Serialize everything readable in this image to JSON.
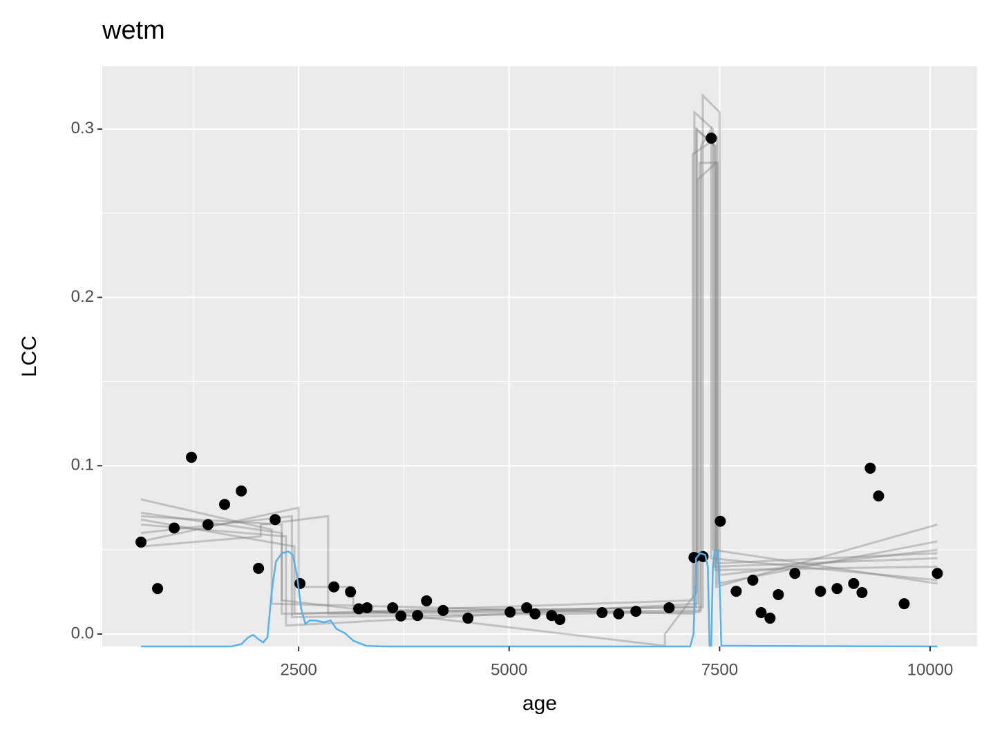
{
  "chart_data": {
    "type": "scatter",
    "title": "wetm",
    "x_label": "age",
    "y_label": "LCC",
    "xlim": [
      168,
      10558
    ],
    "ylim": [
      -0.0074,
      0.3373
    ],
    "xticks": [
      2500,
      5000,
      7500,
      10000
    ],
    "yticks": [
      {
        "value": 0,
        "label": "0.0"
      },
      0.1,
      0.2,
      0.3
    ],
    "xminor": [
      1250,
      3750,
      6250,
      8750
    ],
    "yminor": [
      0.05,
      0.15,
      0.25
    ],
    "grid": true,
    "point_color": "#000000",
    "x": [
      628,
      825,
      1022,
      1227,
      1424,
      1621,
      1819,
      2024,
      2221,
      2516,
      2919,
      3116,
      3214,
      3313,
      3617,
      3715,
      3912,
      4019,
      4216,
      4511,
      5012,
      5209,
      5308,
      5505,
      5603,
      6104,
      6301,
      6506,
      6900,
      7196,
      7303,
      7401,
      7508,
      7697,
      7894,
      7993,
      8099,
      8197,
      8394,
      8698,
      8895,
      9092,
      9191,
      9289,
      9388,
      9692,
      10086
    ],
    "values": [
      0.0546,
      0.027,
      0.063,
      0.105,
      0.065,
      0.077,
      0.085,
      0.039,
      0.068,
      0.03,
      0.028,
      0.025,
      0.015,
      0.0156,
      0.0156,
      0.0107,
      0.011,
      0.0197,
      0.014,
      0.0094,
      0.013,
      0.0156,
      0.012,
      0.011,
      0.0086,
      0.0127,
      0.012,
      0.0135,
      0.0156,
      0.0455,
      0.046,
      0.2946,
      0.067,
      0.0254,
      0.032,
      0.0127,
      0.0094,
      0.0234,
      0.036,
      0.0254,
      0.027,
      0.03,
      0.0246,
      0.0985,
      0.082,
      0.018,
      0.036
    ],
    "line_color": "#808080",
    "line_opacity": 0.4,
    "lines": [
      {
        "x": [
          628,
          2300,
          2300,
          7220,
          7220,
          7440,
          7440,
          10086
        ],
        "values": [
          0.072,
          0.06,
          0.012,
          0.016,
          0.3,
          0.29,
          0.04,
          0.045
        ]
      },
      {
        "x": [
          628,
          2420,
          2420,
          7260,
          7260,
          7480,
          7480,
          10086
        ],
        "values": [
          0.06,
          0.07,
          0.01,
          0.013,
          0.28,
          0.28,
          0.03,
          0.055
        ]
      },
      {
        "x": [
          628,
          2180,
          2180,
          7200,
          7200,
          7420,
          7420,
          10086
        ],
        "values": [
          0.08,
          0.062,
          0.018,
          0.012,
          0.31,
          0.3,
          0.05,
          0.03
        ]
      },
      {
        "x": [
          628,
          2500,
          2500,
          3150,
          3150,
          7300,
          7300,
          7500,
          7500,
          10086
        ],
        "values": [
          0.055,
          0.075,
          0.028,
          0.028,
          0.013,
          0.016,
          0.32,
          0.31,
          0.035,
          0.05
        ]
      },
      {
        "x": [
          628,
          2350,
          2350,
          7240,
          7240,
          7460,
          7460,
          10086
        ],
        "values": [
          0.065,
          0.058,
          0.005,
          0.018,
          0.27,
          0.28,
          0.028,
          0.065
        ]
      },
      {
        "x": [
          628,
          2050,
          2050,
          2850,
          2850,
          7280,
          7280,
          7400,
          7400,
          10086
        ],
        "values": [
          0.052,
          0.058,
          0.065,
          0.07,
          0.012,
          0.014,
          0.29,
          0.3,
          0.045,
          0.032
        ]
      },
      {
        "x": [
          628,
          2300,
          2300,
          6850,
          6850,
          7230,
          7230,
          7450,
          7450,
          10086
        ],
        "values": [
          0.07,
          0.065,
          0.02,
          -0.007,
          0.0,
          0.025,
          0.3,
          0.29,
          0.038,
          0.04
        ]
      },
      {
        "x": [
          628,
          2450,
          2450,
          7180,
          7180,
          7470,
          7470,
          10086
        ],
        "values": [
          0.068,
          0.052,
          0.012,
          0.02,
          0.285,
          0.295,
          0.042,
          0.048
        ]
      }
    ],
    "density": {
      "color": "#56b1ec",
      "x": [
        628,
        1700,
        1820,
        1900,
        1960,
        2020,
        2080,
        2130,
        2180,
        2230,
        2300,
        2380,
        2430,
        2480,
        2530,
        2580,
        2630,
        2700,
        2800,
        2880,
        2950,
        3050,
        3150,
        3300,
        3500,
        7150,
        7190,
        7220,
        7270,
        7330,
        7360,
        7380,
        7400,
        7420,
        7440,
        7480,
        7500,
        7520,
        10086
      ],
      "values": [
        -0.0074,
        -0.0074,
        -0.006,
        -0.002,
        -0.0005,
        -0.003,
        -0.005,
        -0.002,
        0.025,
        0.043,
        0.048,
        0.049,
        0.047,
        0.035,
        0.015,
        0.006,
        0.008,
        0.008,
        0.007,
        0.008,
        0.003,
        0.0005,
        -0.004,
        -0.007,
        -0.0074,
        -0.0074,
        0.0,
        0.045,
        0.048,
        0.047,
        0.04,
        -0.007,
        -0.007,
        0.04,
        0.049,
        0.049,
        0.03,
        -0.007,
        -0.0074
      ]
    }
  }
}
